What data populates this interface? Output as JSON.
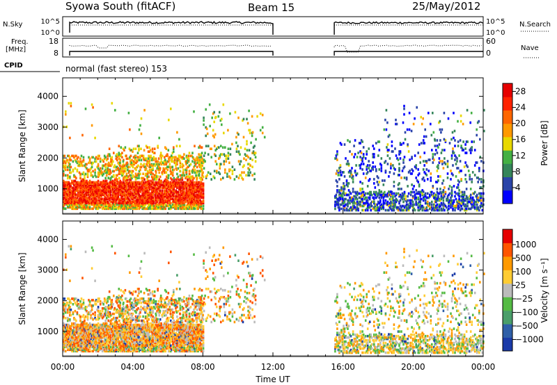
{
  "header": {
    "title": "Syowa South (fitACF)",
    "beam": "Beam 15",
    "date": "25/May/2012"
  },
  "top_panels": {
    "nsky_label": "N.Sky",
    "nsearch_label": "N.Search",
    "noise_ticks_left": [
      "10^5",
      "10^0"
    ],
    "noise_ticks_right": [
      "10^5",
      "10^0"
    ],
    "freq_label": "Freq.",
    "freq_unit": "[MHz]",
    "freq_ticks": [
      "18",
      "8"
    ],
    "nave_label": "Nave",
    "nave_ticks": [
      "60",
      "0"
    ],
    "cpid_label": "CPID",
    "cpid_value": "normal (fast stereo) 153"
  },
  "colors": {
    "power_scale": [
      "#0000ff",
      "#2a44a8",
      "#35855a",
      "#44b044",
      "#e8d800",
      "#ff9900",
      "#ff6600",
      "#ff2200",
      "#e60000"
    ],
    "velocity_scale": [
      "#e60000",
      "#ff5500",
      "#ff9900",
      "#ffcc33",
      "#bbbbbb",
      "#55bb44",
      "#4a9e6a",
      "#2f5fa8",
      "#1a3aa8"
    ]
  },
  "chart_data": [
    {
      "type": "heatmap",
      "name": "power",
      "ylabel": "Slant Range [km]",
      "yticks": [
        "1000",
        "2000",
        "3000",
        "4000"
      ],
      "ylim": [
        180,
        4600
      ],
      "colorbar_label": "Power [dB]",
      "colorbar_ticks": [
        "4",
        "8",
        "12",
        "16",
        "20",
        "24",
        "28"
      ],
      "colorbar_range": [
        0,
        30
      ],
      "xlim": [
        0,
        24
      ],
      "data_gap_hours": [
        12.0,
        15.5
      ],
      "scatter_regions": [
        {
          "t": [
            0,
            8
          ],
          "r": [
            300,
            2300
          ]
        },
        {
          "t": [
            15.5,
            24
          ],
          "r": [
            300,
            2600
          ]
        }
      ]
    },
    {
      "type": "heatmap",
      "name": "velocity",
      "ylabel": "Slant Range [km]",
      "yticks": [
        "1000",
        "2000",
        "3000",
        "4000"
      ],
      "ylim": [
        180,
        4600
      ],
      "colorbar_label": "Velocity [m s⁻¹]",
      "colorbar_ticks": [
        "1000",
        "500",
        "100",
        "25",
        "−25",
        "−100",
        "−500",
        "−1000"
      ],
      "xlabel": "Time UT",
      "xticks": [
        "00:00",
        "04:00",
        "08:00",
        "12:00",
        "16:00",
        "20:00",
        "00:00"
      ],
      "xlim": [
        0,
        24
      ]
    }
  ]
}
